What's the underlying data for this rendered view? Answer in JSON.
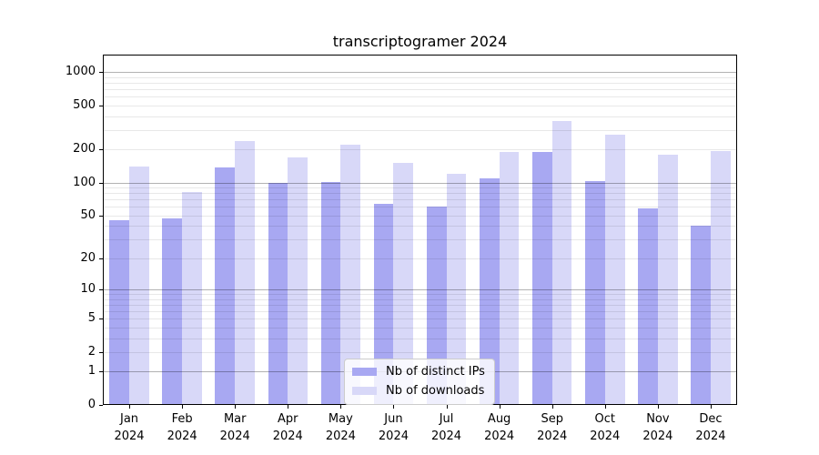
{
  "chart_data": {
    "type": "bar",
    "title": "transcriptogramer 2024",
    "x_tick_year": "2024",
    "categories": [
      "Jan",
      "Feb",
      "Mar",
      "Apr",
      "May",
      "Jun",
      "Jul",
      "Aug",
      "Sep",
      "Oct",
      "Nov",
      "Dec"
    ],
    "series": [
      {
        "name": "Nb of distinct IPs",
        "color": "#a8a8f2",
        "values": [
          45,
          47,
          137,
          100,
          102,
          64,
          60,
          110,
          188,
          104,
          58,
          40
        ]
      },
      {
        "name": "Nb of downloads",
        "color": "#d8d8f8",
        "values": [
          140,
          82,
          238,
          168,
          220,
          150,
          121,
          190,
          360,
          270,
          178,
          192
        ]
      }
    ],
    "y_axis": {
      "scale": "log1p",
      "tick_labels": [
        "0",
        "1",
        "2",
        "5",
        "10",
        "20",
        "50",
        "100",
        "200",
        "500",
        "1000"
      ],
      "tick_values": [
        0,
        1,
        2,
        5,
        10,
        20,
        50,
        100,
        200,
        500,
        1000
      ],
      "major_grid_values": [
        1,
        10,
        100,
        1000
      ],
      "range_top": 1400,
      "grid": true
    },
    "legend": {
      "position": "lower-center"
    }
  },
  "colors": {
    "spine": "#000000",
    "major_grid": "rgba(0,0,0,0.30)",
    "minor_grid": "rgba(0,0,0,0.09)"
  }
}
